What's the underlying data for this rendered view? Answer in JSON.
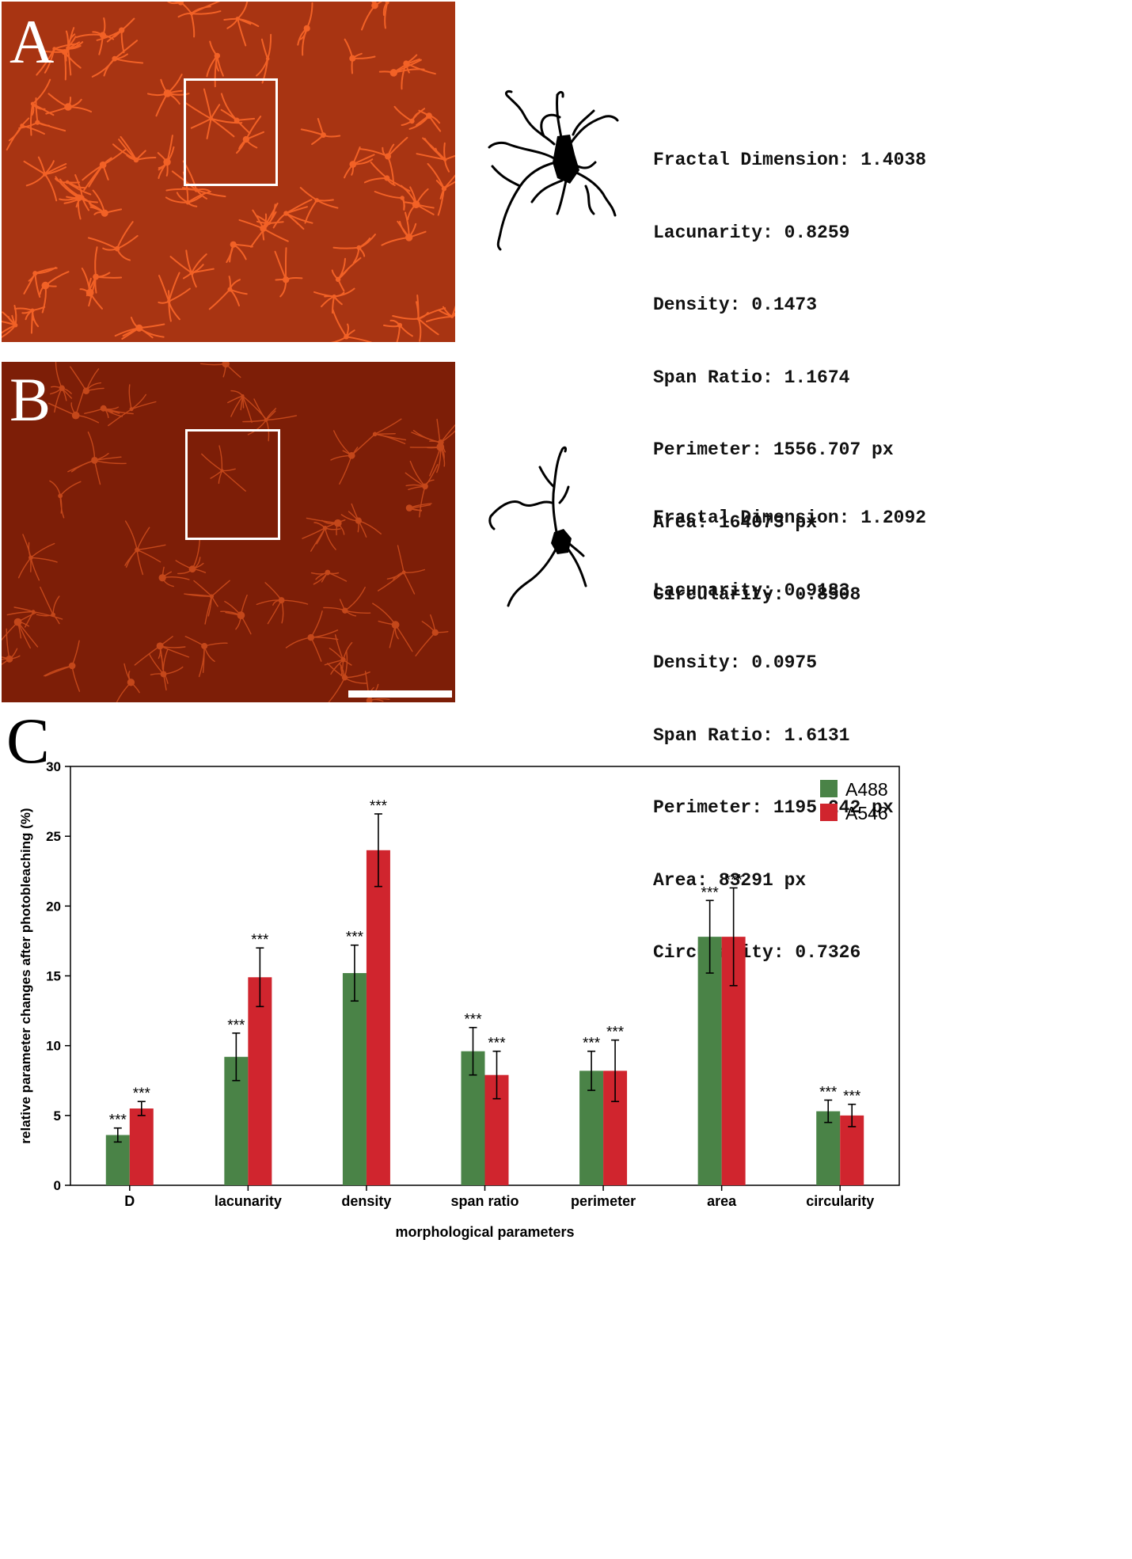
{
  "panels": {
    "a": {
      "letter": "A",
      "metrics": [
        "Fractal Dimension: 1.4038",
        "Lacunarity: 0.8259",
        "Density: 0.1473",
        "Span Ratio: 1.1674",
        "Perimeter: 1556.707 px",
        "Area: 164073 px",
        "Circularity: 0.8508"
      ]
    },
    "b": {
      "letter": "B",
      "metrics": [
        "Fractal Dimension: 1.2092",
        "Lacunarity: 0.9183",
        "Density: 0.0975",
        "Span Ratio: 1.6131",
        "Perimeter: 1195.242 px",
        "Area: 83291 px",
        "Circularity: 0.7326"
      ]
    },
    "c": {
      "letter": "C"
    }
  },
  "colors": {
    "a488": "#4a8347",
    "a546": "#d0252e",
    "micro_bg_a": "#a83412",
    "micro_bg_b": "#7d1e07",
    "cell_glow": "#ff6a2a"
  },
  "chart_data": {
    "type": "bar",
    "categories": [
      "D",
      "lacunarity",
      "density",
      "span ratio",
      "perimeter",
      "area",
      "circularity"
    ],
    "series": [
      {
        "name": "A488",
        "color": "#4a8347",
        "values": [
          3.6,
          9.2,
          15.2,
          9.6,
          8.2,
          17.8,
          5.3
        ],
        "errors": [
          0.5,
          1.7,
          2.0,
          1.7,
          1.4,
          2.6,
          0.8
        ],
        "annotations": [
          "***",
          "***",
          "***",
          "***",
          "***",
          "***",
          "***"
        ]
      },
      {
        "name": "A546",
        "color": "#d0252e",
        "values": [
          5.5,
          14.9,
          24.0,
          7.9,
          8.2,
          17.8,
          5.0
        ],
        "errors": [
          0.5,
          2.1,
          2.6,
          1.7,
          2.2,
          3.5,
          0.8
        ],
        "annotations": [
          "***",
          "***",
          "***",
          "***",
          "***",
          "***",
          "***"
        ]
      }
    ],
    "xlabel": "morphological parameters",
    "ylabel": "relative parameter changes after photobleaching (%)",
    "ylim": [
      0,
      30
    ],
    "yticks": [
      "0",
      "5",
      "10",
      "15",
      "20",
      "25",
      "30"
    ],
    "legend_position": "top-right",
    "grid": false
  }
}
